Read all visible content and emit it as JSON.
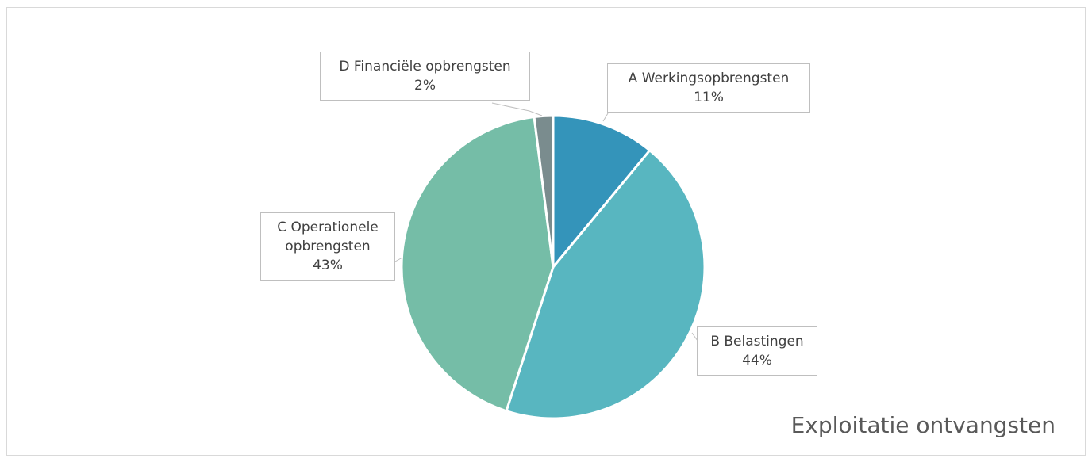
{
  "chart_data": {
    "type": "pie",
    "title": "Exploitatie ontvangsten",
    "categories": [
      "A Werkingsopbrengsten",
      "B Belastingen",
      "C Operationele opbrengsten",
      "D Financiële opbrengsten"
    ],
    "values": [
      11,
      44,
      43,
      2
    ],
    "value_labels": [
      "11%",
      "44%",
      "43%",
      "2%"
    ],
    "colors": [
      "#3494ba",
      "#58b6c0",
      "#75bda7",
      "#7a8c8e"
    ]
  }
}
